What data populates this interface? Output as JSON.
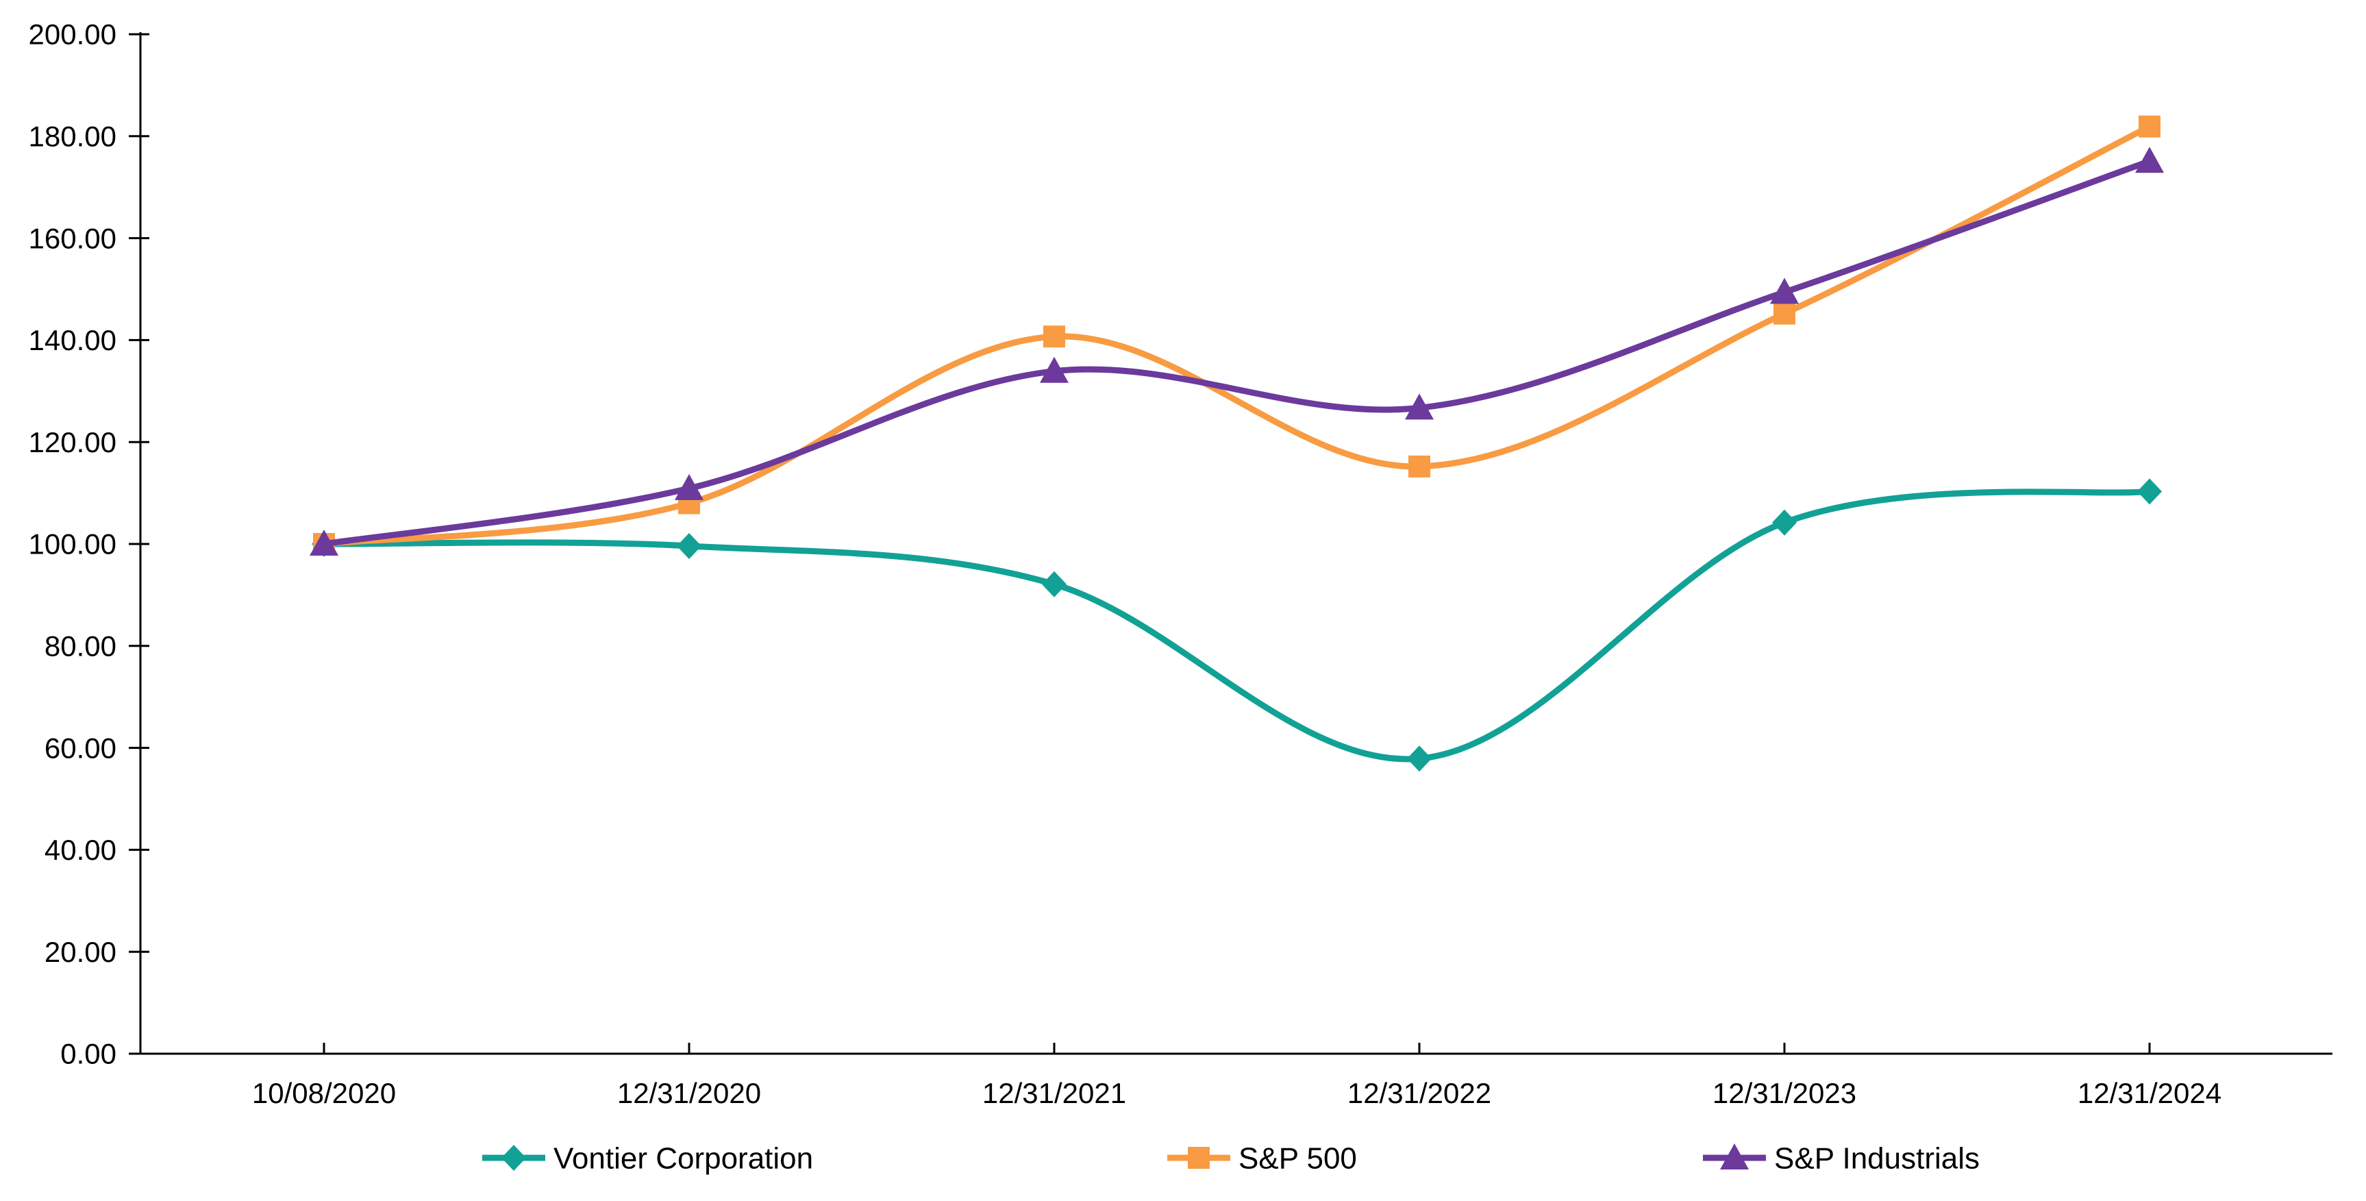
{
  "chart": {
    "background": "#FFFFFF",
    "axis_color": "#000000",
    "font_color": "#000000"
  },
  "chart_data": {
    "type": "line",
    "smoothed": true,
    "grid": false,
    "title": "",
    "xlabel": "",
    "ylabel": "",
    "legend_position": "bottom",
    "categories": [
      "10/08/2020",
      "12/31/2020",
      "12/31/2021",
      "12/31/2022",
      "12/31/2023",
      "12/31/2024"
    ],
    "series": [
      {
        "name": "Vontier Corporation",
        "color": "#12A195",
        "marker": "diamond",
        "values": [
          100.0,
          99.6,
          92.1,
          57.9,
          104.2,
          110.3
        ]
      },
      {
        "name": "S&P 500",
        "color": "#F89B42",
        "marker": "square",
        "values": [
          100.0,
          108.0,
          140.7,
          115.2,
          145.2,
          181.9
        ]
      },
      {
        "name": "S&P Industrials",
        "color": "#6B3A9C",
        "marker": "triangle",
        "values": [
          100.0,
          110.9,
          133.9,
          126.7,
          149.4,
          175.1
        ]
      }
    ],
    "y_axis": {
      "min": 0,
      "max": 200,
      "step": 20,
      "tick_labels": [
        "0.00",
        "20.00",
        "40.00",
        "60.00",
        "80.00",
        "100.00",
        "120.00",
        "140.00",
        "160.00",
        "180.00",
        "200.00"
      ]
    },
    "legend": [
      {
        "label": "Vontier Corporation",
        "marker": "diamond",
        "color": "#12A195"
      },
      {
        "label": "S&P 500",
        "marker": "square",
        "color": "#F89B42"
      },
      {
        "label": "S&P Industrials",
        "marker": "triangle",
        "color": "#6B3A9C"
      }
    ]
  }
}
